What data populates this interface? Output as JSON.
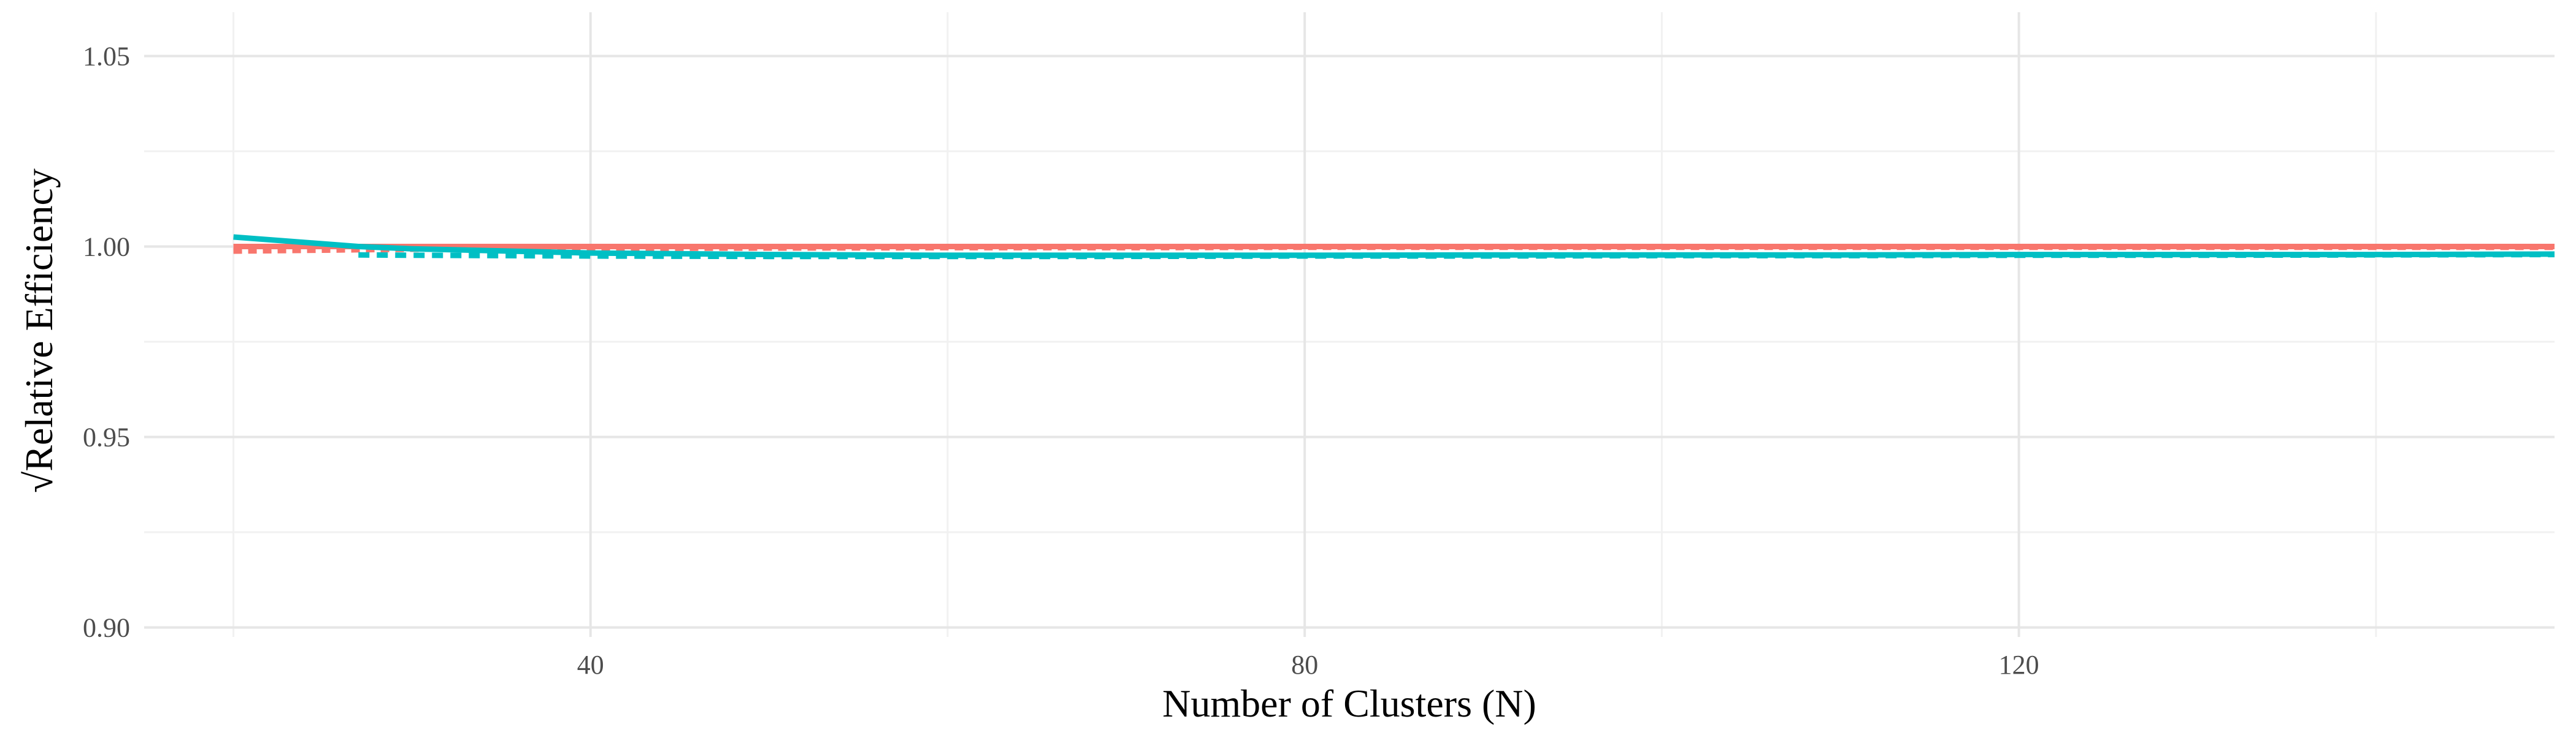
{
  "chart_data": {
    "type": "line",
    "title": "",
    "xlabel": "Number of Clusters (N)",
    "ylabel": "√Relative Efficiency",
    "xlim": [
      15,
      150
    ],
    "ylim": [
      0.8975,
      1.0615
    ],
    "x_ticks": [
      40,
      80,
      120
    ],
    "x_tick_labels": [
      "40",
      "80",
      "120"
    ],
    "x_minor_ticks": [
      20,
      60,
      100,
      140
    ],
    "y_ticks": [
      0.9,
      0.95,
      1.0,
      1.05
    ],
    "y_tick_labels": [
      "0.90",
      "0.95",
      "1.00",
      "1.05"
    ],
    "y_minor_ticks": [
      0.925,
      0.975,
      1.025
    ],
    "grid": true,
    "legend": "none",
    "series": [
      {
        "color": "#F8766D",
        "linestyle": "solid",
        "x": [
          20,
          30,
          40,
          50,
          60,
          70,
          80,
          90,
          100,
          110,
          120,
          130,
          140,
          150
        ],
        "y": [
          1.0,
          1.0,
          1.0,
          1.0,
          1.0,
          1.0,
          1.0,
          1.0,
          1.0,
          1.0,
          1.0,
          1.0,
          1.0,
          1.0
        ]
      },
      {
        "color": "#F8766D",
        "linestyle": "dotted",
        "x": [
          20,
          30,
          40,
          50,
          60,
          70,
          80,
          90,
          100,
          110,
          120,
          130,
          140,
          150
        ],
        "y": [
          0.9988,
          0.9993,
          0.9995,
          0.9996,
          0.9997,
          0.9997,
          0.9998,
          0.9998,
          0.9998,
          0.9998,
          0.9998,
          0.9998,
          0.9998,
          0.9998
        ]
      },
      {
        "color": "#00BFC4",
        "linestyle": "solid",
        "x": [
          20,
          27,
          30,
          40,
          50,
          60,
          70,
          80,
          90,
          100,
          110,
          120,
          130,
          140,
          150
        ],
        "y": [
          1.0025,
          1.0,
          0.9994,
          0.9983,
          0.9979,
          0.9977,
          0.9977,
          0.9977,
          0.9978,
          0.9978,
          0.9978,
          0.9979,
          0.9979,
          0.9979,
          0.998
        ]
      },
      {
        "color": "#00BFC4",
        "linestyle": "dashed",
        "x": [
          27,
          30,
          40,
          50,
          60,
          70,
          80,
          90,
          100,
          110,
          120,
          130,
          140,
          150
        ],
        "y": [
          0.9978,
          0.9977,
          0.9975,
          0.9974,
          0.9974,
          0.9974,
          0.9975,
          0.9975,
          0.9976,
          0.9976,
          0.9977,
          0.9977,
          0.9978,
          0.9979
        ]
      }
    ]
  }
}
